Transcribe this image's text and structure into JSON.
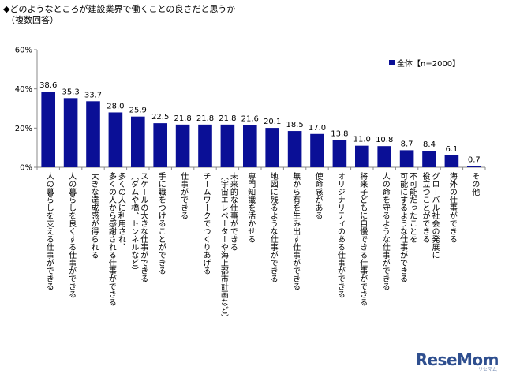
{
  "title": "◆どのようなところが建設業界で働くことの良さだと思うか",
  "subtitle": "（複数回答）",
  "legend_label": "全体【n=2000】",
  "logo_text": "ReseMom",
  "logo_sub": "リセマム",
  "colors": {
    "bar": "#0a0f96",
    "grid": "#888888"
  },
  "chart_data": {
    "type": "bar",
    "ylim": [
      0,
      60
    ],
    "yticks": [
      "0%",
      "20%",
      "40%",
      "60%"
    ],
    "ytick_values": [
      0,
      20,
      40,
      60
    ],
    "grid": false,
    "legend": "top-right",
    "series": [
      {
        "name": "全体【n=2000】"
      }
    ],
    "categories": [
      "人の暮らしを支える仕事ができる",
      "人の暮らしを良くする仕事ができる",
      "大きな達成感が得られる",
      "多くの人に利用され、\n多くの人から感謝される仕事ができる",
      "スケールの大きな仕事ができる\n（ダムや橋、トンネルなど）",
      "手に職をつけることができる",
      "仕事ができる",
      "チームワークでつくりあげる",
      "未来的な仕事ができる\n（宇宙エレベーターや海上都市計画など）",
      "専門知識を活かせる",
      "地図に残るような仕事ができる",
      "無から有を生み出す仕事ができる",
      "使命感がある",
      "オリジナリティのある仕事ができる",
      "将来子どもに自慢できる仕事ができる",
      "人の命を守るような仕事ができる",
      "不可能だったことを\n可能にするような仕事ができる",
      "グローバル社会の発展に\n役立つことができる",
      "海外の仕事ができる",
      "その他"
    ],
    "values": [
      38.6,
      35.3,
      33.7,
      28.0,
      25.9,
      22.5,
      21.8,
      21.8,
      21.8,
      21.6,
      20.1,
      18.5,
      17.0,
      13.8,
      11.0,
      10.8,
      8.7,
      8.4,
      6.1,
      0.7
    ],
    "value_labels": [
      "38.6",
      "35.3",
      "33.7",
      "28.0",
      "25.9",
      "22.5",
      "21.8",
      "21.8",
      "21.8",
      "21.6",
      "20.1",
      "18.5",
      "17.0",
      "13.8",
      "11.0",
      "10.8",
      "8.7",
      "8.4",
      "6.1",
      "0.7"
    ]
  }
}
